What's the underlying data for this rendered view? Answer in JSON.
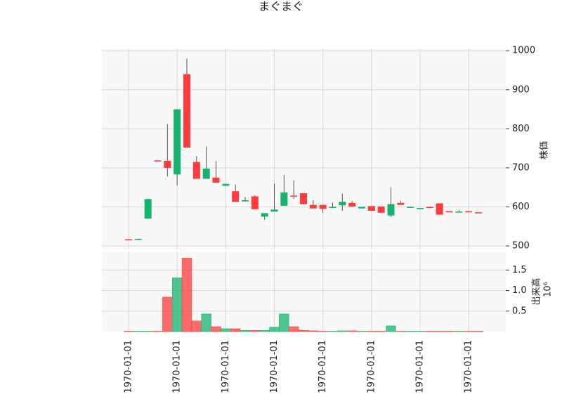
{
  "chart_data": [
    {
      "type": "candlestick",
      "title": "まぐまぐ",
      "y_label": "株価",
      "categories": [
        "1970-01-01",
        null,
        null,
        null,
        null,
        "1970-01-01",
        null,
        null,
        null,
        null,
        "1970-01-01",
        null,
        null,
        null,
        null,
        "1970-01-01",
        null,
        null,
        null,
        null,
        "1970-01-01",
        null,
        null,
        null,
        null,
        "1970-01-01",
        null,
        null,
        null,
        null,
        "1970-01-01",
        null,
        null,
        null,
        null,
        "1970-01-01",
        null
      ],
      "open": [
        517,
        516,
        570,
        719,
        718,
        683,
        940,
        715,
        672,
        675,
        654,
        640,
        614,
        627,
        575,
        588,
        603,
        629,
        635,
        605,
        605,
        597,
        604,
        610,
        596,
        602,
        601,
        578,
        610,
        598,
        595,
        600,
        609,
        589,
        586,
        589,
        586
      ],
      "high": [
        518,
        519,
        621,
        719,
        812,
        850,
        980,
        730,
        755,
        718,
        659,
        657,
        625,
        630,
        584,
        660,
        682,
        668,
        635,
        617,
        605,
        611,
        634,
        615,
        600,
        602,
        601,
        650,
        615,
        601,
        597,
        601,
        609,
        589,
        592,
        589,
        586
      ],
      "low": [
        515,
        515,
        569,
        717,
        678,
        655,
        752,
        672,
        672,
        662,
        654,
        613,
        614,
        594,
        567,
        588,
        603,
        620,
        607,
        596,
        585,
        597,
        590,
        601,
        596,
        590,
        585,
        574,
        605,
        598,
        595,
        597,
        580,
        586,
        586,
        586,
        584
      ],
      "close": [
        515,
        518,
        620,
        718,
        700,
        850,
        752,
        672,
        698,
        662,
        659,
        613,
        617,
        594,
        584,
        593,
        637,
        627,
        607,
        596,
        595,
        600,
        613,
        601,
        600,
        590,
        585,
        607,
        605,
        600,
        597,
        597,
        580,
        586,
        588,
        586,
        584
      ],
      "up_color": "#16b36e",
      "down_color": "#ff3b3b",
      "ylim": [
        491,
        1004
      ],
      "yticks": [
        500,
        600,
        700,
        800,
        900,
        1000
      ],
      "grid": true
    },
    {
      "type": "bar",
      "y_label": "出来高",
      "offset_label": "10⁶",
      "values": [
        0.01,
        0.01,
        0.01,
        0.01,
        0.84,
        1.31,
        1.79,
        0.26,
        0.43,
        0.12,
        0.07,
        0.07,
        0.03,
        0.03,
        0.03,
        0.11,
        0.43,
        0.12,
        0.03,
        0.02,
        0.01,
        0.01,
        0.02,
        0.02,
        0.01,
        0.01,
        0.01,
        0.14,
        0.01,
        0.01,
        0.01,
        0.01,
        0.01,
        0.01,
        0.01,
        0.01,
        0.01
      ],
      "ylim": [
        0,
        1.95
      ],
      "yticks": [
        0.5,
        {
          "value": 1,
          "label": "1.0"
        },
        1.5
      ],
      "grid": true
    }
  ]
}
